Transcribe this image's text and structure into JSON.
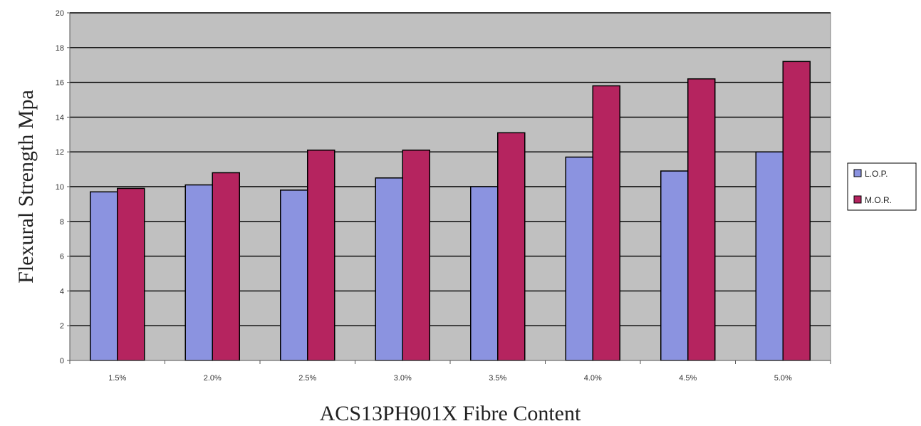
{
  "chart_data": {
    "type": "bar",
    "title": "",
    "xlabel": "ACS13PH901X Fibre Content",
    "ylabel": "Flexural Strength Mpa",
    "categories": [
      "1.5%",
      "2.0%",
      "2.5%",
      "3.0%",
      "3.5%",
      "4.0%",
      "4.5%",
      "5.0%"
    ],
    "series": [
      {
        "name": "L.O.P.",
        "values": [
          9.7,
          10.1,
          9.8,
          10.5,
          10.0,
          11.7,
          10.9,
          12.0
        ]
      },
      {
        "name": "M.O.R.",
        "values": [
          9.9,
          10.8,
          12.1,
          12.1,
          13.1,
          15.8,
          16.2,
          17.2
        ]
      }
    ],
    "ylim": [
      0,
      20
    ],
    "yticks": [
      0,
      2,
      4,
      6,
      8,
      10,
      12,
      14,
      16,
      18,
      20
    ],
    "grid": true,
    "legend_position": "right",
    "colors": {
      "plot_background": "#c0c0c0",
      "L.O.P.": "#8b93e0",
      "M.O.R.": "#b5245f",
      "gridline": "#000000"
    }
  }
}
